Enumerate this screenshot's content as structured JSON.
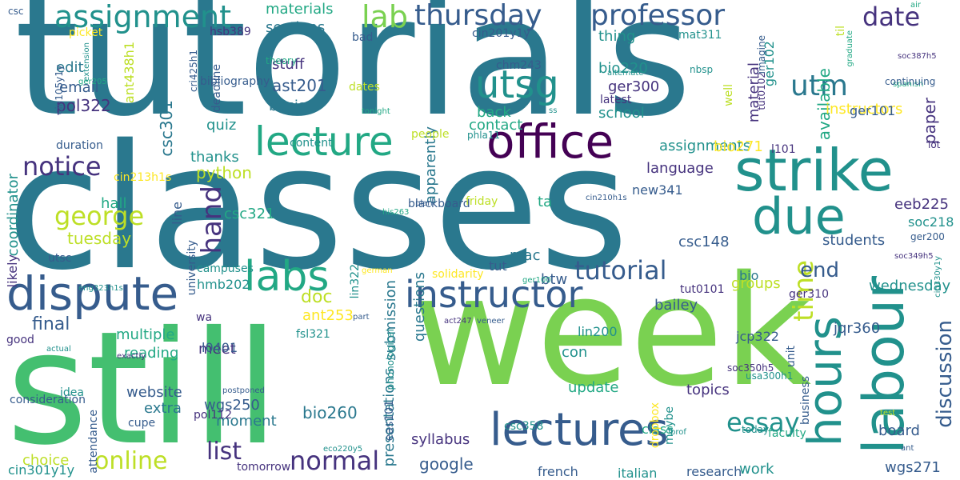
{
  "palette": {
    "dark_purple": "#440154",
    "purple": "#46337e",
    "indigo": "#365c8d",
    "blue": "#2a788e",
    "teal": "#21918c",
    "teal_green": "#22a884",
    "green": "#44bf70",
    "light_green": "#7ad151",
    "yellow_green": "#bddf26",
    "yellow": "#fde725"
  },
  "words": [
    {
      "text": "tutorials",
      "color": "blue"
    },
    {
      "text": "classes",
      "color": "blue"
    },
    {
      "text": "week",
      "color": "light_green"
    },
    {
      "text": "still",
      "color": "green"
    },
    {
      "text": "office",
      "color": "dark_purple"
    },
    {
      "text": "strike",
      "color": "teal"
    },
    {
      "text": "labour",
      "color": "teal"
    },
    {
      "text": "dispute",
      "color": "indigo"
    },
    {
      "text": "lectures",
      "color": "indigo"
    },
    {
      "text": "lecture",
      "color": "teal_green"
    },
    {
      "text": "due",
      "color": "teal"
    },
    {
      "text": "instructor",
      "color": "indigo"
    },
    {
      "text": "labs",
      "color": "teal_green"
    },
    {
      "text": "hours",
      "color": "teal"
    },
    {
      "text": "utsg",
      "color": "teal"
    },
    {
      "text": "assignment",
      "color": "teal"
    },
    {
      "text": "professor",
      "color": "indigo"
    },
    {
      "text": "thursday",
      "color": "indigo"
    },
    {
      "text": "lab",
      "color": "light_green"
    },
    {
      "text": "date",
      "color": "purple"
    },
    {
      "text": "notice",
      "color": "purple"
    },
    {
      "text": "george",
      "color": "yellow_green"
    },
    {
      "text": "normal",
      "color": "purple"
    },
    {
      "text": "online",
      "color": "yellow_green"
    },
    {
      "text": "essay",
      "color": "teal"
    },
    {
      "text": "tutorial",
      "color": "indigo"
    },
    {
      "text": "time",
      "color": "yellow_green"
    },
    {
      "text": "hand",
      "color": "purple"
    },
    {
      "text": "utm",
      "color": "blue"
    },
    {
      "text": "end",
      "color": "indigo"
    },
    {
      "text": "discussion",
      "color": "indigo"
    },
    {
      "text": "list",
      "color": "purple"
    },
    {
      "text": "google",
      "color": "indigo"
    },
    {
      "text": "materials",
      "color": "teal_green"
    },
    {
      "text": "sections",
      "color": "blue"
    },
    {
      "text": "stuff",
      "color": "purple"
    },
    {
      "text": "basis",
      "color": "blue"
    },
    {
      "text": "ast201",
      "color": "indigo"
    },
    {
      "text": "csc301",
      "color": "blue"
    },
    {
      "text": "pol322",
      "color": "purple"
    },
    {
      "text": "email",
      "color": "indigo"
    },
    {
      "text": "edit",
      "color": "blue"
    },
    {
      "text": "quiz",
      "color": "teal"
    },
    {
      "text": "thanks",
      "color": "teal"
    },
    {
      "text": "python",
      "color": "yellow_green"
    },
    {
      "text": "hall",
      "color": "teal_green"
    },
    {
      "text": "tuesday",
      "color": "yellow_green"
    },
    {
      "text": "coordinator",
      "color": "teal"
    },
    {
      "text": "final",
      "color": "indigo"
    },
    {
      "text": "multiple",
      "color": "teal_green"
    },
    {
      "text": "reading",
      "color": "teal_green"
    },
    {
      "text": "website",
      "color": "indigo"
    },
    {
      "text": "extra",
      "color": "blue"
    },
    {
      "text": "wgs250",
      "color": "indigo"
    },
    {
      "text": "moment",
      "color": "blue"
    },
    {
      "text": "choice",
      "color": "yellow_green"
    },
    {
      "text": "bio260",
      "color": "blue"
    },
    {
      "text": "presentations",
      "color": "blue"
    },
    {
      "text": "questions",
      "color": "blue"
    },
    {
      "text": "apparently",
      "color": "blue"
    },
    {
      "text": "submission",
      "color": "blue"
    },
    {
      "text": "syllabus",
      "color": "purple"
    },
    {
      "text": "update",
      "color": "teal_green"
    },
    {
      "text": "topics",
      "color": "purple"
    },
    {
      "text": "con",
      "color": "teal"
    },
    {
      "text": "meet",
      "color": "purple"
    },
    {
      "text": "mac",
      "color": "blue"
    },
    {
      "text": "ta",
      "color": "teal_green"
    },
    {
      "text": "back",
      "color": "teal_green"
    },
    {
      "text": "contact",
      "color": "teal_green"
    },
    {
      "text": "thing",
      "color": "teal"
    },
    {
      "text": "bio220",
      "color": "teal"
    },
    {
      "text": "ger300",
      "color": "purple"
    },
    {
      "text": "school",
      "color": "teal"
    },
    {
      "text": "assignments",
      "color": "teal"
    },
    {
      "text": "language",
      "color": "purple"
    },
    {
      "text": "bio271",
      "color": "yellow"
    },
    {
      "text": "csc148",
      "color": "indigo"
    },
    {
      "text": "students",
      "color": "indigo"
    },
    {
      "text": "groups",
      "color": "yellow_green"
    },
    {
      "text": "bailey",
      "color": "indigo"
    },
    {
      "text": "wednesday",
      "color": "teal"
    },
    {
      "text": "jqr360",
      "color": "indigo"
    },
    {
      "text": "board",
      "color": "indigo"
    },
    {
      "text": "wgs271",
      "color": "indigo"
    },
    {
      "text": "work",
      "color": "teal"
    },
    {
      "text": "class",
      "color": "teal_green"
    },
    {
      "text": "french",
      "color": "indigo"
    },
    {
      "text": "research",
      "color": "indigo"
    },
    {
      "text": "italian",
      "color": "teal"
    },
    {
      "text": "eeb225",
      "color": "purple"
    },
    {
      "text": "soc218",
      "color": "teal"
    },
    {
      "text": "csc321",
      "color": "teal_green"
    },
    {
      "text": "new341",
      "color": "indigo"
    },
    {
      "text": "ger102",
      "color": "teal"
    },
    {
      "text": "material",
      "color": "purple"
    },
    {
      "text": "available",
      "color": "teal_green"
    },
    {
      "text": "paper",
      "color": "purple"
    },
    {
      "text": "instructors",
      "color": "yellow"
    },
    {
      "text": "ger101",
      "color": "indigo"
    },
    {
      "text": "btw",
      "color": "indigo"
    },
    {
      "text": "doc",
      "color": "yellow_green"
    },
    {
      "text": "ant253",
      "color": "yellow"
    },
    {
      "text": "l101",
      "color": "purple"
    },
    {
      "text": "bio",
      "color": "blue"
    },
    {
      "text": "ger310",
      "color": "purple"
    },
    {
      "text": "tut0101",
      "color": "purple"
    },
    {
      "text": "lin200",
      "color": "teal"
    },
    {
      "text": "jcp322",
      "color": "indigo"
    },
    {
      "text": "fsl321",
      "color": "teal"
    },
    {
      "text": "l0401",
      "color": "indigo"
    },
    {
      "text": "mat311",
      "color": "teal"
    },
    {
      "text": "nbsp",
      "color": "teal"
    },
    {
      "text": "tut0102",
      "color": "purple"
    },
    {
      "text": "latest",
      "color": "purple"
    },
    {
      "text": "well",
      "color": "yellow_green"
    },
    {
      "text": "til",
      "color": "yellow_green"
    },
    {
      "text": "imagine",
      "color": "indigo"
    },
    {
      "text": "graduate",
      "color": "teal_green"
    },
    {
      "text": "spanish",
      "color": "teal_green"
    },
    {
      "text": "continuing",
      "color": "indigo"
    },
    {
      "text": "soc387h5",
      "color": "purple"
    },
    {
      "text": "air",
      "color": "teal_green"
    },
    {
      "text": "lot",
      "color": "purple"
    },
    {
      "text": "business",
      "color": "indigo"
    },
    {
      "text": "unit",
      "color": "indigo"
    },
    {
      "text": "ger200",
      "color": "indigo"
    },
    {
      "text": "soc349h5",
      "color": "purple"
    },
    {
      "text": "cin330y1y",
      "color": "teal"
    },
    {
      "text": "usa300h1",
      "color": "teal"
    },
    {
      "text": "soc350h5",
      "color": "purple"
    },
    {
      "text": "faculty",
      "color": "teal_green"
    },
    {
      "text": "test",
      "color": "yellow_green"
    },
    {
      "text": "ant",
      "color": "indigo"
    },
    {
      "text": "csc",
      "color": "indigo"
    },
    {
      "text": "picket",
      "color": "yellow"
    },
    {
      "text": "hsb389",
      "color": "purple"
    },
    {
      "text": "bad",
      "color": "indigo"
    },
    {
      "text": "cin201y1y",
      "color": "indigo"
    },
    {
      "text": "chm243",
      "color": "indigo"
    },
    {
      "text": "ant438h1",
      "color": "yellow_green"
    },
    {
      "text": "extension",
      "color": "teal"
    },
    {
      "text": "ger205",
      "color": "teal_green"
    },
    {
      "text": "cin105y1y",
      "color": "indigo"
    },
    {
      "text": "duration",
      "color": "indigo"
    },
    {
      "text": "cri425h1",
      "color": "indigo"
    },
    {
      "text": "theory",
      "color": "teal_green"
    },
    {
      "text": "bibliography",
      "color": "indigo"
    },
    {
      "text": "deadline",
      "color": "indigo"
    },
    {
      "text": "dates",
      "color": "yellow_green"
    },
    {
      "text": "alternate",
      "color": "teal"
    },
    {
      "text": "ss",
      "color": "teal"
    },
    {
      "text": "tonight",
      "color": "teal_green"
    },
    {
      "text": "phla11",
      "color": "teal"
    },
    {
      "text": "people",
      "color": "yellow_green"
    },
    {
      "text": "content",
      "color": "teal"
    },
    {
      "text": "blackboard",
      "color": "indigo"
    },
    {
      "text": "friday",
      "color": "yellow_green"
    },
    {
      "text": "plan",
      "color": "indigo"
    },
    {
      "text": "cin210h1s",
      "color": "indigo"
    },
    {
      "text": "tut",
      "color": "indigo"
    },
    {
      "text": "cin213h1s",
      "color": "yellow"
    },
    {
      "text": "line",
      "color": "indigo"
    },
    {
      "text": "university",
      "color": "indigo"
    },
    {
      "text": "likely",
      "color": "purple"
    },
    {
      "text": "utsc",
      "color": "indigo"
    },
    {
      "text": "campuses",
      "color": "teal"
    },
    {
      "text": "wa",
      "color": "purple"
    },
    {
      "text": "hmb202",
      "color": "teal"
    },
    {
      "text": "solidarity",
      "color": "yellow"
    },
    {
      "text": "lin322",
      "color": "teal"
    },
    {
      "text": "his263",
      "color": "teal_green"
    },
    {
      "text": "german",
      "color": "yellow"
    },
    {
      "text": "ger100",
      "color": "teal_green"
    },
    {
      "text": "eng323h1s",
      "color": "teal"
    },
    {
      "text": "actual",
      "color": "teal"
    },
    {
      "text": "exactly",
      "color": "purple"
    },
    {
      "text": "part",
      "color": "indigo"
    },
    {
      "text": "phonological",
      "color": "teal"
    },
    {
      "text": "act247",
      "color": "purple"
    },
    {
      "text": "veneer",
      "color": "indigo"
    },
    {
      "text": "good",
      "color": "purple"
    },
    {
      "text": "postponed",
      "color": "indigo"
    },
    {
      "text": "idea",
      "color": "teal"
    },
    {
      "text": "consideration",
      "color": "indigo"
    },
    {
      "text": "attendance",
      "color": "indigo"
    },
    {
      "text": "cupe",
      "color": "indigo"
    },
    {
      "text": "pol112",
      "color": "purple"
    },
    {
      "text": "eas101",
      "color": "indigo"
    },
    {
      "text": "csc358",
      "color": "teal"
    },
    {
      "text": "dropbox",
      "color": "yellow"
    },
    {
      "text": "maybe",
      "color": "teal"
    },
    {
      "text": "prof",
      "color": "teal"
    },
    {
      "text": "today",
      "color": "teal"
    },
    {
      "text": "eco220y5",
      "color": "teal"
    },
    {
      "text": "cin301y1y",
      "color": "teal"
    },
    {
      "text": "tomorrow",
      "color": "purple"
    },
    {
      "text": "eng236h1s",
      "color": "yellow"
    },
    {
      "text": "chm138h1",
      "color": "purple"
    },
    {
      "text": "cin410h1s",
      "color": "teal"
    },
    {
      "text": "essays",
      "color": "yellow"
    }
  ]
}
